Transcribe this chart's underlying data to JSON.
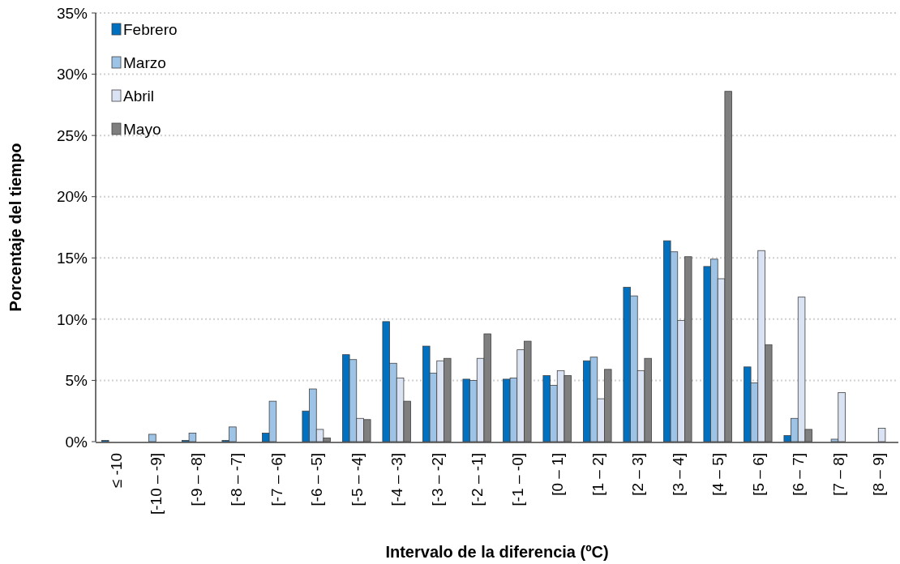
{
  "chart_data": {
    "type": "bar",
    "xlabel": "Intervalo de la diferencia (ºC)",
    "ylabel": "Porcentaje del tiempo",
    "categories": [
      "≤ -10",
      "[-10 – -9]",
      "[-9 – -8]",
      "[-8 – -7]",
      "[-7 – -6]",
      "[-6 – -5]",
      "[-5 – -4]",
      "[-4 – -3]",
      "[-3 – -2]",
      "[-2 – -1]",
      "[-1 – -0]",
      "[0 – 1]",
      "[1 – 2]",
      "[2 – 3]",
      "[3 – 4]",
      "[4 – 5]",
      "[5 – 6]",
      "[6 – 7]",
      "[7 – 8]",
      "[8 – 9]"
    ],
    "series": [
      {
        "name": "Febrero",
        "color": "#0070c0",
        "values": [
          0.1,
          0,
          0.1,
          0.1,
          0.7,
          2.5,
          7.1,
          9.8,
          7.8,
          5.1,
          5.1,
          5.4,
          6.6,
          12.6,
          16.4,
          14.3,
          6.1,
          0.5,
          0,
          0
        ]
      },
      {
        "name": "Marzo",
        "color": "#9dc3e6",
        "values": [
          0,
          0.6,
          0.7,
          1.2,
          3.3,
          4.3,
          6.7,
          6.4,
          5.6,
          5.0,
          5.2,
          4.6,
          6.9,
          11.9,
          15.5,
          14.9,
          4.8,
          1.9,
          0.2,
          0
        ]
      },
      {
        "name": "Abril",
        "color": "#dae3f3",
        "values": [
          0,
          0,
          0,
          0,
          0,
          1.0,
          1.9,
          5.2,
          6.6,
          6.8,
          7.5,
          5.8,
          3.5,
          5.8,
          9.9,
          13.3,
          15.6,
          11.8,
          4.0,
          1.1
        ]
      },
      {
        "name": "Mayo",
        "color": "#7f7f7f",
        "values": [
          0,
          0,
          0,
          0,
          0,
          0.3,
          1.8,
          3.3,
          6.8,
          8.8,
          8.2,
          5.4,
          5.9,
          6.8,
          15.1,
          28.6,
          7.9,
          1.0,
          0,
          0
        ]
      }
    ],
    "ylim": [
      0,
      35
    ],
    "yticks": [
      {
        "value": 0,
        "label": "0%"
      },
      {
        "value": 5,
        "label": "5%"
      },
      {
        "value": 10,
        "label": "10%"
      },
      {
        "value": 15,
        "label": "15%"
      },
      {
        "value": 20,
        "label": "20%"
      },
      {
        "value": 25,
        "label": "25%"
      },
      {
        "value": 30,
        "label": "30%"
      },
      {
        "value": 35,
        "label": "35%"
      }
    ],
    "grid": "y",
    "legend": "top left"
  }
}
